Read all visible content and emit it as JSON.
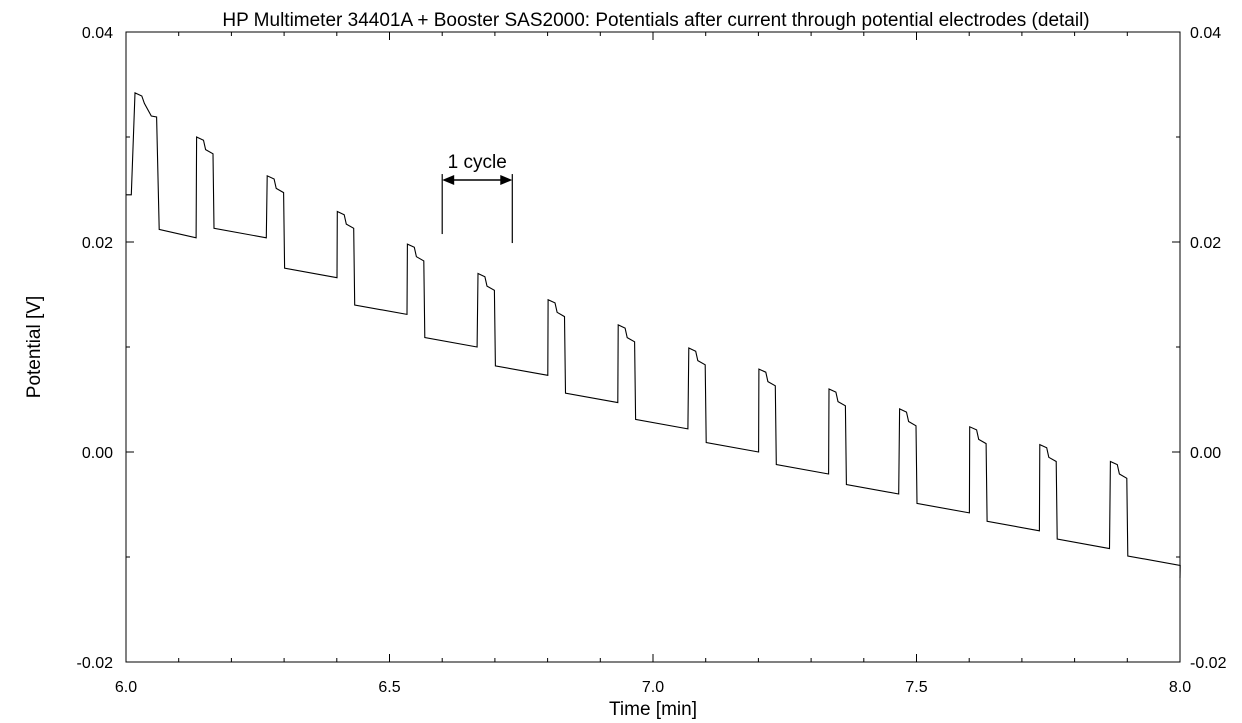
{
  "chart_data": {
    "type": "line",
    "title": "HP Multimeter 34401A + Booster SAS2000: Potentials after current through potential electrodes (detail)",
    "xlabel": "Time [min]",
    "ylabel": "Potential [V]",
    "xlim": [
      6.0,
      8.0
    ],
    "ylim": [
      -0.02,
      0.04
    ],
    "x_ticks": [
      6.0,
      6.5,
      7.0,
      7.5,
      8.0
    ],
    "x_tick_labels": [
      "6.0",
      "6.5",
      "7.0",
      "7.5",
      "8.0"
    ],
    "y_ticks": [
      -0.02,
      0.0,
      0.02,
      0.04
    ],
    "y_tick_labels": [
      "-0.02",
      "0.00",
      "0.02",
      "0.04"
    ],
    "grid": false,
    "legend": "none",
    "series_color": "#000000",
    "cycle_period_min": 0.1333,
    "annotation": {
      "label": "1 cycle",
      "x_start": 6.6,
      "x_end": 6.733,
      "y": 0.0259
    },
    "cycles": [
      {
        "t": 6.0,
        "h": 0.025,
        "l": 0.0205
      },
      {
        "t": 6.133,
        "h": 0.03,
        "l": 0.0204
      },
      {
        "t": 6.267,
        "h": 0.0263,
        "l": 0.0166
      },
      {
        "t": 6.4,
        "h": 0.0229,
        "l": 0.0131
      },
      {
        "t": 6.533,
        "h": 0.0198,
        "l": 0.01
      },
      {
        "t": 6.667,
        "h": 0.017,
        "l": 0.0073
      },
      {
        "t": 6.8,
        "h": 0.0145,
        "l": 0.0047
      },
      {
        "t": 6.933,
        "h": 0.0121,
        "l": 0.0022
      },
      {
        "t": 7.067,
        "h": 0.0099,
        "l": 0.0
      },
      {
        "t": 7.2,
        "h": 0.0079,
        "l": -0.0021
      },
      {
        "t": 7.333,
        "h": 0.006,
        "l": -0.004
      },
      {
        "t": 7.467,
        "h": 0.0041,
        "l": -0.0058
      },
      {
        "t": 7.6,
        "h": 0.0024,
        "l": -0.0075
      },
      {
        "t": 7.733,
        "h": 0.0007,
        "l": -0.0092
      },
      {
        "t": 7.867,
        "h": -0.0009,
        "l": -0.0108
      },
      {
        "t": 8.0,
        "h": -0.012,
        "l": -0.012
      }
    ]
  }
}
